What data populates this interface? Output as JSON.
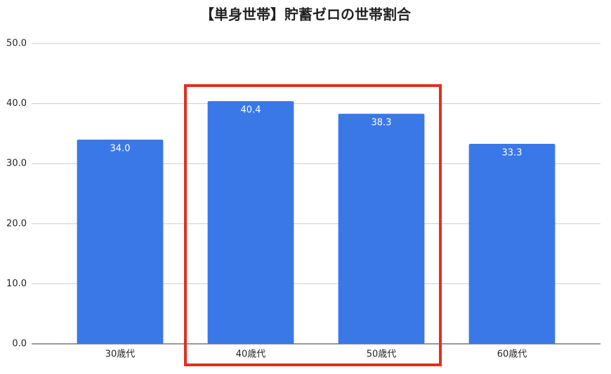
{
  "chart_data": {
    "type": "bar",
    "title": "【単身世帯】貯蓄ゼロの世帯割合",
    "categories": [
      "30歳代",
      "40歳代",
      "50歳代",
      "60歳代"
    ],
    "values": [
      34.0,
      40.4,
      38.3,
      33.3
    ],
    "value_labels": [
      "34.0",
      "40.4",
      "38.3",
      "33.3"
    ],
    "color": "#3b78e7",
    "ylim": [
      0,
      50
    ],
    "yticks": [
      {
        "value": 0,
        "label": "0.0"
      },
      {
        "value": 10,
        "label": "10.0"
      },
      {
        "value": 20,
        "label": "20.0"
      },
      {
        "value": 30,
        "label": "30.0"
      },
      {
        "value": 40,
        "label": "40.0"
      },
      {
        "value": 50,
        "label": "50.0"
      }
    ],
    "grid": true
  }
}
